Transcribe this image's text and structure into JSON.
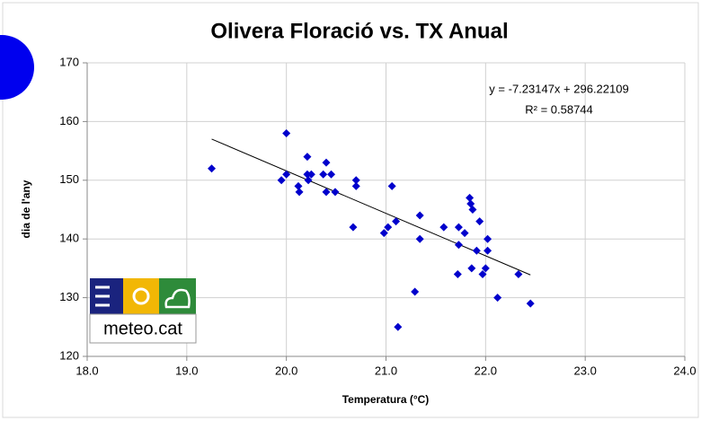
{
  "chart_data": {
    "type": "scatter",
    "title": "Olivera Floració  vs.  TX Anual",
    "x_label": "Temperatura (°C)",
    "y_label": "dia de l'any",
    "color": "#0000cc",
    "grid": true,
    "xlim": [
      18,
      24
    ],
    "ylim": [
      120,
      170
    ],
    "xticks": [
      {
        "value": 18,
        "label": "18.0"
      },
      {
        "value": 19,
        "label": "19.0"
      },
      {
        "value": 20,
        "label": "20.0"
      },
      {
        "value": 21,
        "label": "21.0"
      },
      {
        "value": 22,
        "label": "22.0"
      },
      {
        "value": 23,
        "label": "23.0"
      },
      {
        "value": 24,
        "label": "24.0"
      }
    ],
    "yticks": [
      120,
      130,
      140,
      150,
      160,
      170
    ],
    "x": [
      19.25,
      20.0,
      19.95,
      20.0,
      20.12,
      20.13,
      20.21,
      20.21,
      20.25,
      20.22,
      20.37,
      20.4,
      20.4,
      20.45,
      20.49,
      20.67,
      20.7,
      20.7,
      20.98,
      21.02,
      21.06,
      21.1,
      21.12,
      21.29,
      21.34,
      21.34,
      21.58,
      21.72,
      21.73,
      21.73,
      21.79,
      21.84,
      21.85,
      21.87,
      21.86,
      21.91,
      21.94,
      21.97,
      22.0,
      22.02,
      22.02,
      22.12,
      22.33,
      22.45
    ],
    "values": [
      152,
      158,
      150,
      151,
      149,
      148,
      154,
      151,
      151,
      150,
      151,
      153,
      148,
      151,
      148,
      142,
      150,
      149,
      141,
      142,
      149,
      143,
      125,
      131,
      144,
      140,
      142,
      134,
      142,
      139,
      141,
      147,
      146,
      145,
      135,
      138,
      143,
      134,
      135,
      140,
      138,
      130,
      134,
      129
    ],
    "trendline": {
      "slope": -7.23147,
      "intercept": 296.22109,
      "label": "y = -7.23147x + 296.22109",
      "r2_label": "R² = 0.58744"
    },
    "logo": "meteo.cat"
  }
}
